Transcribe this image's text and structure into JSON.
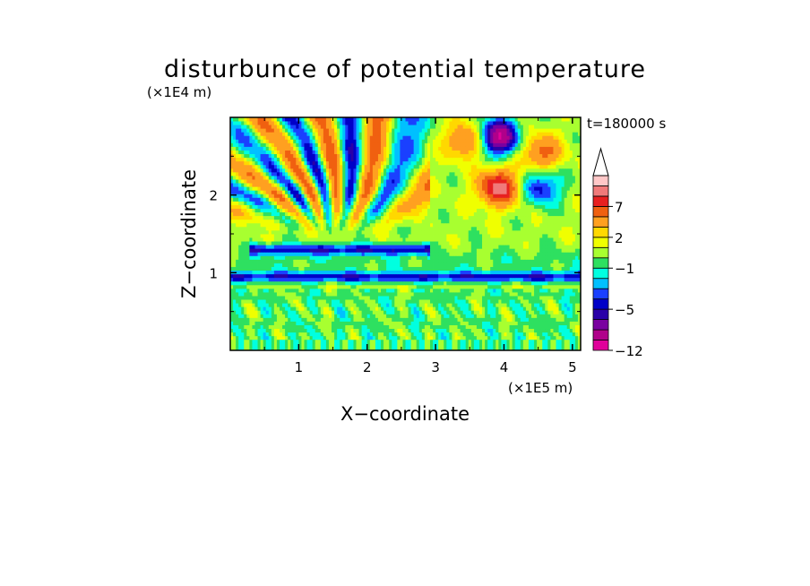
{
  "chart_data": {
    "type": "heatmap",
    "title": "disturbunce of potential temperature",
    "xlabel": "X−coordinate",
    "ylabel": "Z−coordinate",
    "x_unit": "(×1E5 m)",
    "y_unit": "(×1E4 m)",
    "time_label": "t=180000 s",
    "xlim": [
      0,
      5.12
    ],
    "ylim": [
      0,
      3.0
    ],
    "x_ticks": [
      "1",
      "2",
      "3",
      "4",
      "5"
    ],
    "x_tick_values": [
      1,
      2,
      3,
      4,
      5
    ],
    "y_ticks": [
      "1",
      "2"
    ],
    "y_tick_values": [
      1,
      2
    ],
    "colorbar": {
      "labels": [
        "7",
        "2",
        "−1",
        "−5",
        "−12"
      ],
      "label_values": [
        7,
        2,
        -1,
        -5,
        -12
      ],
      "levels": [
        -12,
        -10,
        -8,
        -6,
        -5,
        -4,
        -3,
        -2,
        -1,
        0,
        1,
        2,
        3,
        5,
        7,
        9,
        11
      ],
      "colors": [
        "#e0009a",
        "#b0008a",
        "#7a00a0",
        "#2a00a8",
        "#0000c8",
        "#1a40ff",
        "#00c0ff",
        "#00ffe0",
        "#2ee060",
        "#a8ff30",
        "#f0ff00",
        "#ffd800",
        "#ffa020",
        "#f06010",
        "#e82020",
        "#f07a7a",
        "#ffc8c8"
      ],
      "extend": "max"
    },
    "grid": false,
    "legend": "colorbar-right",
    "features": [
      {
        "kind": "band",
        "z": 0.95,
        "level": -5,
        "x_range": [
          0.0,
          5.12
        ]
      },
      {
        "kind": "band",
        "z": 1.3,
        "level": -5,
        "x_range": [
          0.3,
          2.9
        ]
      },
      {
        "kind": "band",
        "z": 1.15,
        "level": -1,
        "x_range": [
          0.0,
          5.12
        ]
      },
      {
        "kind": "cell",
        "x": 3.92,
        "z": 2.75,
        "level": -10
      },
      {
        "kind": "cell",
        "x": 3.92,
        "z": 2.1,
        "level": 9
      },
      {
        "kind": "cell",
        "x": 3.45,
        "z": 2.7,
        "level": 5
      },
      {
        "kind": "cell",
        "x": 4.55,
        "z": 2.55,
        "level": 5
      },
      {
        "kind": "cell",
        "x": 4.55,
        "z": 2.1,
        "level": -5
      },
      {
        "kind": "fan",
        "x_range": [
          0.0,
          2.9
        ],
        "z_range": [
          1.5,
          3.0
        ],
        "levels": [
          -5,
          5
        ]
      }
    ]
  }
}
